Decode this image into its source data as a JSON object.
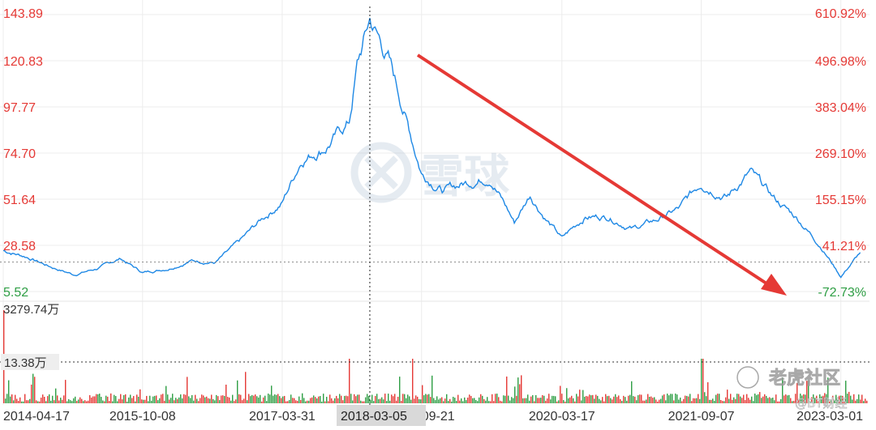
{
  "chart_data": [
    {
      "type": "line",
      "panel": "price",
      "y_axis_left": {
        "ticks": [
          "143.89",
          "120.83",
          "97.77",
          "74.70",
          "51.64",
          "28.58",
          "5.52"
        ],
        "range": [
          5.52,
          143.89
        ]
      },
      "y_axis_right": {
        "ticks": [
          "610.92%",
          "496.98%",
          "383.04%",
          "269.10%",
          "155.15%",
          "41.21%",
          "-72.73%"
        ],
        "range": [
          -72.73,
          610.92
        ]
      },
      "reference_line_value": 20.24,
      "series": [
        {
          "color": "#1e88e5",
          "x": [
            "2014-04-17",
            "2014-07",
            "2014-10",
            "2015-01",
            "2015-04",
            "2015-07",
            "2015-10-08",
            "2016-01",
            "2016-04",
            "2016-07",
            "2016-10",
            "2017-01",
            "2017-03-31",
            "2017-06",
            "2017-09",
            "2017-12",
            "2018-01",
            "2018-03-05",
            "2018-05",
            "2018-07",
            "2018-09-21",
            "2018-12",
            "2019-03",
            "2019-06",
            "2019-09",
            "2019-11",
            "2020-01",
            "2020-03-17",
            "2020-06",
            "2020-09",
            "2020-12",
            "2021-03",
            "2021-06",
            "2021-09-07",
            "2021-12",
            "2022-03",
            "2022-06",
            "2022-09",
            "2022-12",
            "2023-03-01",
            "2023-05"
          ],
          "y": [
            26,
            23,
            18,
            14,
            17,
            22,
            15,
            17,
            21,
            20,
            30,
            42,
            50,
            72,
            78,
            90,
            118,
            141,
            122,
            96,
            65,
            56,
            60,
            63,
            40,
            54,
            42,
            32,
            43,
            43,
            37,
            41,
            47,
            60,
            53,
            65,
            52,
            42,
            28,
            13,
            25
          ]
        }
      ],
      "annotation": {
        "type": "arrow",
        "color": "#e53935"
      }
    },
    {
      "type": "bar",
      "panel": "volume",
      "labels": [
        "3279.74万",
        "13.38万"
      ],
      "colors": {
        "up": "#e53935",
        "down": "#2e9e44"
      },
      "notable_spikes": [
        {
          "x": "2014-04-17",
          "value": "3279.74万"
        },
        {
          "x": "2017-12",
          "value": "13.38万"
        },
        {
          "x": "2018-08",
          "value": "13.38万"
        },
        {
          "x": "2021-09-07",
          "value": "13.38万"
        }
      ]
    }
  ],
  "x_axis": {
    "ticks": [
      "2014-04-17",
      "2015-10-08",
      "2017-03-31",
      "2018-09-21",
      "2020-03-17",
      "2021-09-07",
      "2023-03-01"
    ],
    "crosshair_label": "2018-03-05"
  },
  "watermarks": [
    "雪球",
    "老虎社区",
    "@BT财经"
  ],
  "colors": {
    "price_line": "#1e88e5",
    "positive_axis": "#e53935",
    "negative_axis": "#2e9e44",
    "arrow": "#e53935"
  }
}
